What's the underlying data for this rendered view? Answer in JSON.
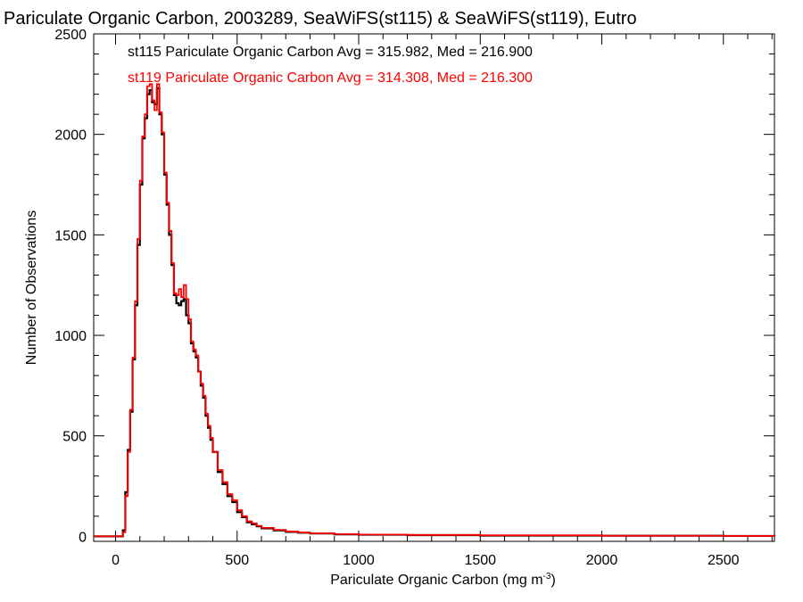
{
  "chart_data": {
    "type": "line",
    "title": "Pariculate Organic Carbon, 2003289, SeaWiFS(st115) & SeaWiFS(st119), Eutro",
    "xlabel": "Pariculate Organic Carbon (mg m",
    "xlabel_sup": "-3",
    "xlabel_end": ")",
    "ylabel": "Number of Observations",
    "xlim": [
      -90,
      2710
    ],
    "ylim": [
      -25,
      2500
    ],
    "xticks": [
      0,
      500,
      1000,
      1500,
      2000,
      2500
    ],
    "yticks": [
      0,
      500,
      1000,
      1500,
      2000,
      2500
    ],
    "legend": [
      {
        "text": "st115 Pariculate Organic Carbon Avg = 315.982, Med = 216.900",
        "color": "#000000"
      },
      {
        "text": "st119 Pariculate Organic Carbon Avg = 314.308, Med = 216.300",
        "color": "#ff0000"
      }
    ],
    "series": [
      {
        "color": "#000000",
        "x": [
          -90,
          30,
          40,
          50,
          60,
          70,
          80,
          90,
          100,
          110,
          120,
          130,
          140,
          150,
          160,
          170,
          180,
          190,
          200,
          210,
          220,
          230,
          240,
          250,
          260,
          270,
          280,
          290,
          300,
          310,
          320,
          330,
          340,
          350,
          360,
          370,
          380,
          390,
          400,
          420,
          440,
          460,
          480,
          500,
          520,
          540,
          560,
          580,
          600,
          650,
          700,
          750,
          800,
          900,
          1000,
          1200,
          1500,
          2000,
          2500,
          2710
        ],
        "y": [
          0,
          30,
          220,
          430,
          620,
          880,
          1150,
          1450,
          1750,
          1980,
          2080,
          2200,
          2220,
          2160,
          2150,
          2230,
          2100,
          2000,
          1800,
          1650,
          1500,
          1350,
          1200,
          1160,
          1150,
          1170,
          1180,
          1100,
          1060,
          960,
          920,
          890,
          820,
          750,
          690,
          600,
          540,
          480,
          420,
          320,
          260,
          200,
          170,
          120,
          95,
          70,
          60,
          50,
          40,
          30,
          22,
          18,
          14,
          10,
          8,
          6,
          4,
          3,
          2,
          0
        ]
      },
      {
        "color": "#ff0000",
        "x": [
          -90,
          30,
          40,
          50,
          60,
          70,
          80,
          90,
          100,
          110,
          120,
          130,
          140,
          150,
          160,
          170,
          180,
          190,
          200,
          210,
          220,
          230,
          240,
          250,
          260,
          270,
          280,
          290,
          300,
          310,
          320,
          330,
          340,
          350,
          360,
          370,
          380,
          390,
          400,
          420,
          440,
          460,
          480,
          500,
          520,
          540,
          560,
          580,
          600,
          650,
          700,
          750,
          800,
          900,
          1000,
          1200,
          1500,
          2000,
          2500,
          2710
        ],
        "y": [
          0,
          20,
          200,
          420,
          630,
          890,
          1170,
          1480,
          1770,
          1990,
          2100,
          2240,
          2250,
          2170,
          2120,
          2250,
          2110,
          2010,
          1810,
          1660,
          1520,
          1360,
          1210,
          1200,
          1230,
          1190,
          1250,
          1180,
          1080,
          970,
          930,
          900,
          820,
          760,
          700,
          610,
          550,
          490,
          420,
          330,
          270,
          210,
          180,
          130,
          100,
          75,
          65,
          52,
          42,
          32,
          24,
          19,
          15,
          11,
          9,
          7,
          5,
          3,
          2,
          0
        ]
      }
    ]
  }
}
